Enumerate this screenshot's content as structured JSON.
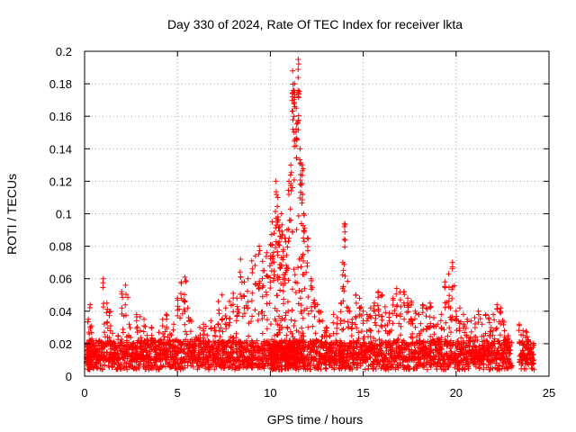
{
  "chart_data": {
    "type": "scatter",
    "title": "Day 330 of 2024, Rate Of TEC Index for receiver lkta",
    "xlabel": "GPS time / hours",
    "ylabel": "ROTI / TECUs",
    "xlim": [
      0,
      25
    ],
    "ylim": [
      0,
      0.2
    ],
    "xticks": [
      "0",
      "5",
      "10",
      "15",
      "20",
      "25"
    ],
    "yticks": [
      "0",
      "0.02",
      "0.04",
      "0.06",
      "0.08",
      "0.1",
      "0.12",
      "0.14",
      "0.16",
      "0.18",
      "0.2"
    ],
    "grid": true,
    "marker": "+",
    "color": "#ff0000",
    "series": [
      {
        "name": "ROTI",
        "x": [
          0.1,
          0.2,
          0.3,
          0.4,
          0.6,
          0.8,
          1.0,
          1.2,
          1.4,
          1.6,
          1.8,
          2.0,
          2.2,
          2.4,
          2.6,
          2.8,
          3.0,
          3.2,
          3.4,
          3.6,
          3.8,
          4.0,
          4.2,
          4.4,
          4.6,
          4.8,
          5.0,
          5.2,
          5.4,
          5.6,
          5.8,
          6.0,
          6.2,
          6.4,
          6.6,
          6.8,
          7.0,
          7.2,
          7.4,
          7.6,
          7.8,
          8.0,
          8.2,
          8.4,
          8.6,
          8.8,
          9.0,
          9.2,
          9.4,
          9.6,
          9.8,
          10.0,
          10.1,
          10.2,
          10.3,
          10.4,
          10.5,
          10.6,
          10.7,
          10.8,
          10.9,
          11.0,
          11.1,
          11.2,
          11.3,
          11.4,
          11.5,
          11.6,
          11.7,
          11.8,
          12.0,
          12.2,
          12.4,
          12.6,
          12.8,
          13.0,
          13.2,
          13.4,
          13.6,
          13.8,
          13.9,
          14.0,
          14.2,
          14.4,
          14.6,
          14.8,
          15.0,
          15.2,
          15.4,
          15.6,
          15.8,
          16.0,
          16.2,
          16.4,
          16.6,
          16.8,
          17.0,
          17.2,
          17.4,
          17.6,
          17.8,
          18.0,
          18.2,
          18.4,
          18.6,
          18.8,
          19.0,
          19.2,
          19.4,
          19.6,
          19.8,
          20.0,
          20.2,
          20.4,
          20.6,
          20.8,
          21.0,
          21.2,
          21.4,
          21.6,
          21.8,
          22.0,
          22.2,
          22.4,
          22.6,
          22.8,
          23.4,
          23.6,
          23.8,
          24.0
        ],
        "y": [
          0.012,
          0.035,
          0.044,
          0.018,
          0.015,
          0.022,
          0.06,
          0.045,
          0.031,
          0.014,
          0.025,
          0.052,
          0.056,
          0.032,
          0.02,
          0.038,
          0.028,
          0.035,
          0.019,
          0.03,
          0.022,
          0.027,
          0.035,
          0.038,
          0.026,
          0.032,
          0.048,
          0.058,
          0.061,
          0.036,
          0.021,
          0.024,
          0.03,
          0.032,
          0.025,
          0.034,
          0.03,
          0.046,
          0.05,
          0.042,
          0.046,
          0.051,
          0.048,
          0.072,
          0.058,
          0.06,
          0.071,
          0.074,
          0.08,
          0.065,
          0.076,
          0.081,
          0.095,
          0.088,
          0.12,
          0.11,
          0.092,
          0.1,
          0.078,
          0.085,
          0.09,
          0.12,
          0.13,
          0.188,
          0.18,
          0.165,
          0.195,
          0.14,
          0.13,
          0.1,
          0.085,
          0.06,
          0.045,
          0.04,
          0.034,
          0.03,
          0.025,
          0.038,
          0.036,
          0.045,
          0.07,
          0.094,
          0.042,
          0.035,
          0.05,
          0.048,
          0.04,
          0.038,
          0.042,
          0.045,
          0.052,
          0.05,
          0.039,
          0.034,
          0.048,
          0.054,
          0.047,
          0.052,
          0.048,
          0.045,
          0.04,
          0.038,
          0.044,
          0.042,
          0.045,
          0.036,
          0.032,
          0.038,
          0.058,
          0.063,
          0.07,
          0.04,
          0.042,
          0.038,
          0.035,
          0.034,
          0.036,
          0.04,
          0.032,
          0.038,
          0.033,
          0.038,
          0.044,
          0.042,
          0.028,
          0.025,
          0.032,
          0.028,
          0.027,
          0.021
        ]
      }
    ]
  }
}
